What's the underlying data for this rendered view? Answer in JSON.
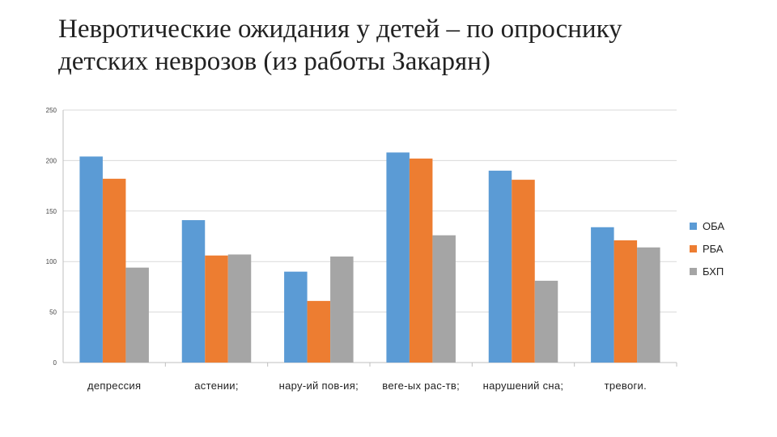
{
  "title": {
    "line1": "Невротические ожидания у детей – по опроснику",
    "line2": "детских неврозов (из работы Закарян)"
  },
  "chart_data": {
    "type": "bar",
    "categories": [
      "депрессия",
      "астении;",
      "нару-ий пов-ия;",
      "веге-ых рас-тв;",
      "нарушений сна;",
      "тревоги."
    ],
    "series": [
      {
        "name": "ОБА",
        "color": "#5B9BD5",
        "values": [
          204,
          141,
          90,
          208,
          190,
          134
        ]
      },
      {
        "name": "РБА",
        "color": "#ED7D31",
        "values": [
          182,
          106,
          61,
          202,
          181,
          121
        ]
      },
      {
        "name": "БХП",
        "color": "#A5A5A5",
        "values": [
          94,
          107,
          105,
          126,
          81,
          114
        ]
      }
    ],
    "ylim": [
      0,
      250
    ],
    "yticks": [
      0,
      50,
      100,
      150,
      200,
      250
    ],
    "legend_position": "right",
    "grid": true
  }
}
